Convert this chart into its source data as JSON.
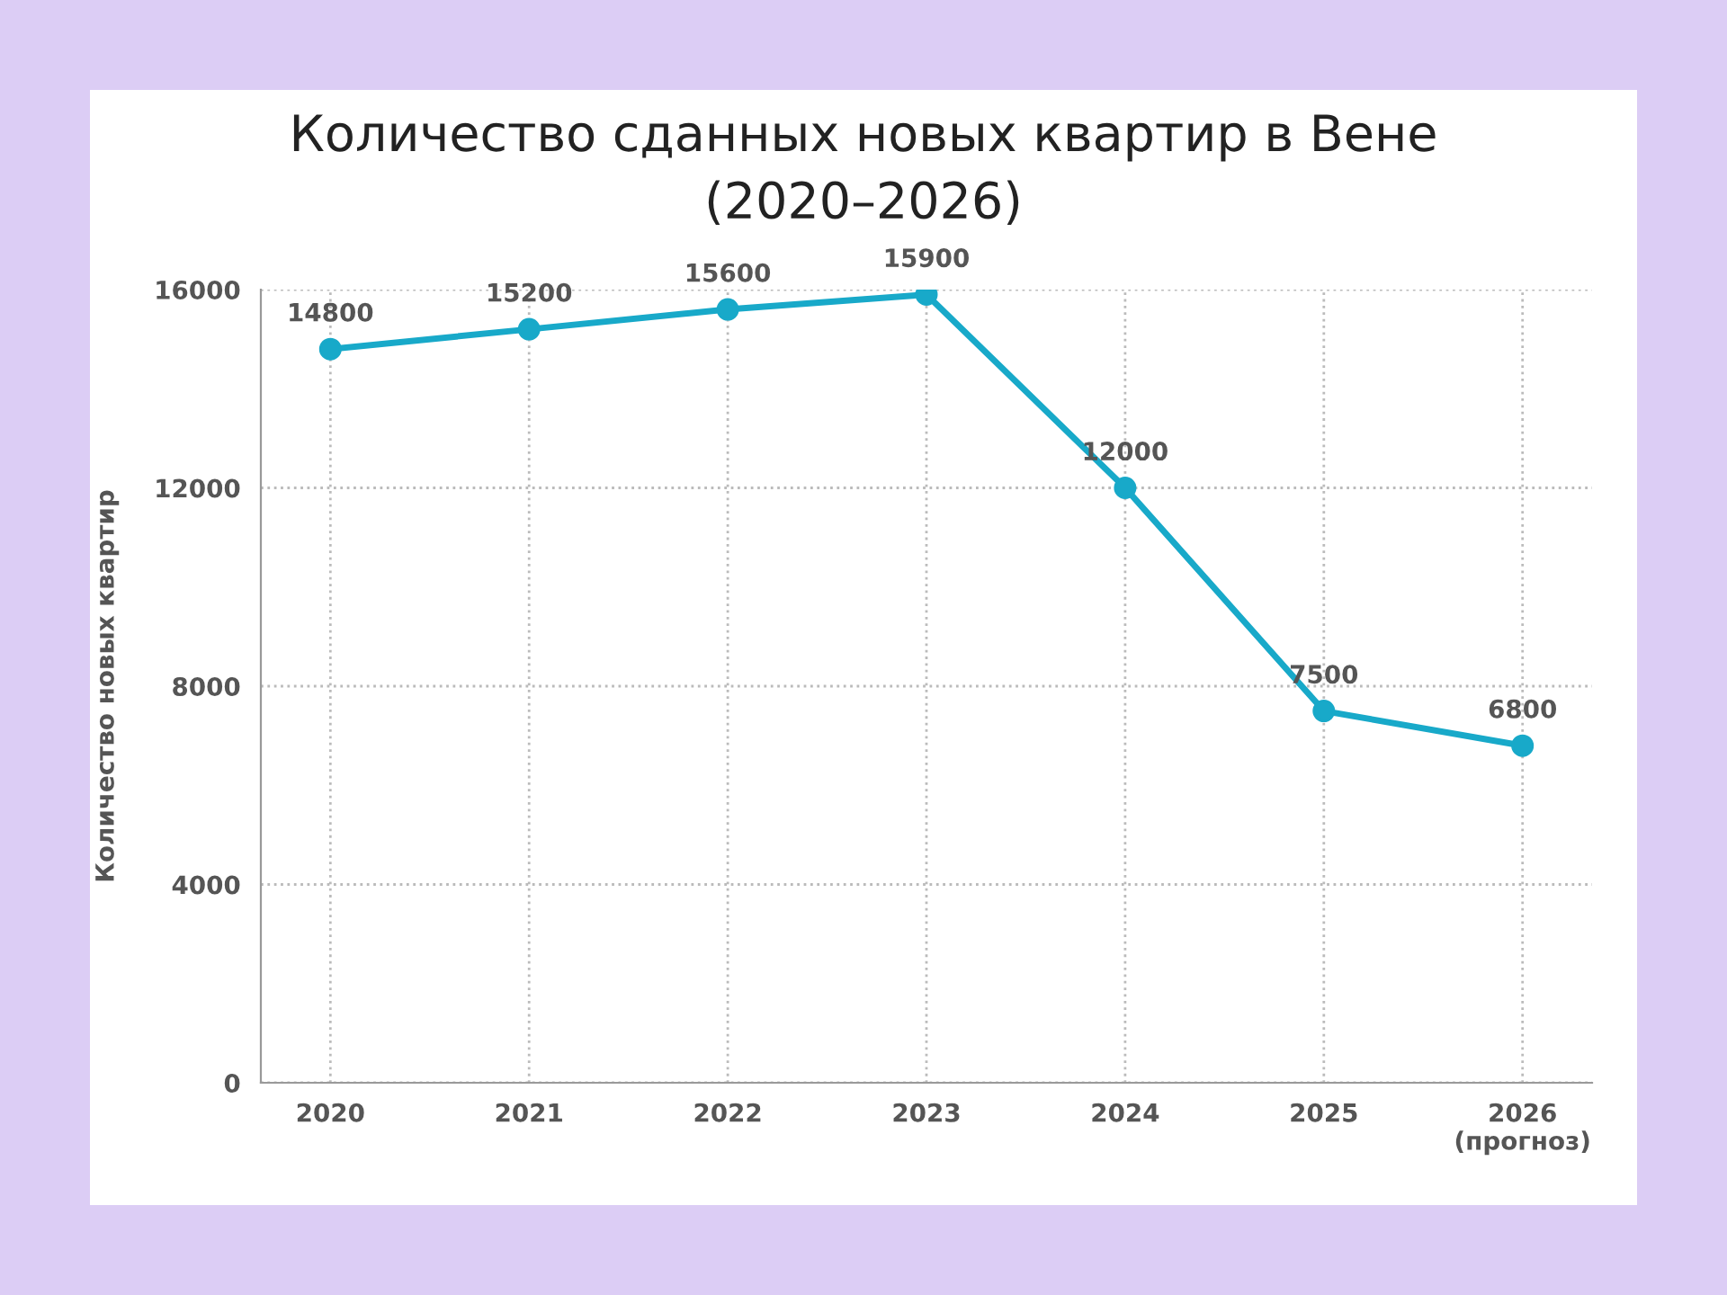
{
  "chart_data": {
    "type": "line",
    "title": "Количество сданных новых квартир в Вене\n(2020–2026)",
    "ylabel": "Количество новых квартир",
    "categories": [
      "2020",
      "2021",
      "2022",
      "2023",
      "2024",
      "2025",
      "2026\n(прогноз)"
    ],
    "series": [
      {
        "color": "#18a9c9",
        "values": [
          14800,
          15200,
          15600,
          15900,
          12000,
          7500,
          6800
        ]
      }
    ],
    "ylim": [
      0,
      16000
    ],
    "yticks": [
      0,
      4000,
      8000,
      12000,
      16000
    ],
    "grid": true,
    "marker": "circle",
    "line_style": "solid",
    "data_labels": true,
    "legend": false
  }
}
